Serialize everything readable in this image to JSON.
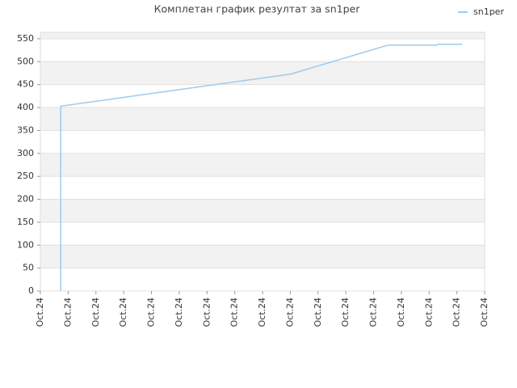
{
  "chart_data": {
    "type": "line",
    "title": "Комплетан график резултат за sn1per",
    "x": [
      0.73,
      0.73,
      9.02,
      12.51,
      14.25,
      14.35,
      15.19
    ],
    "series": [
      {
        "name": "sn1per",
        "color": "#9ccbf0",
        "values": [
          0,
          403,
          473,
          536,
          536,
          538,
          538
        ]
      }
    ],
    "xlim": [
      0,
      16
    ],
    "xticks": [
      {
        "value": 0,
        "label": "Oct.24"
      },
      {
        "value": 1,
        "label": "Oct.24"
      },
      {
        "value": 2,
        "label": "Oct.24"
      },
      {
        "value": 3,
        "label": "Oct.24"
      },
      {
        "value": 4,
        "label": "Oct.24"
      },
      {
        "value": 5,
        "label": "Oct.24"
      },
      {
        "value": 6,
        "label": "Oct.24"
      },
      {
        "value": 7,
        "label": "Oct.24"
      },
      {
        "value": 8,
        "label": "Oct.24"
      },
      {
        "value": 9,
        "label": "Oct.24"
      },
      {
        "value": 10,
        "label": "Oct.24"
      },
      {
        "value": 11,
        "label": "Oct.24"
      },
      {
        "value": 12,
        "label": "Oct.24"
      },
      {
        "value": 13,
        "label": "Oct.24"
      },
      {
        "value": 14,
        "label": "Oct.24"
      },
      {
        "value": 15,
        "label": "Oct.24"
      },
      {
        "value": 16,
        "label": "Oct.24"
      }
    ],
    "ylim": [
      0,
      564
    ],
    "yticks": [
      0,
      50,
      100,
      150,
      200,
      250,
      300,
      350,
      400,
      450,
      500,
      550
    ],
    "grid": true,
    "legend": "top-right"
  }
}
